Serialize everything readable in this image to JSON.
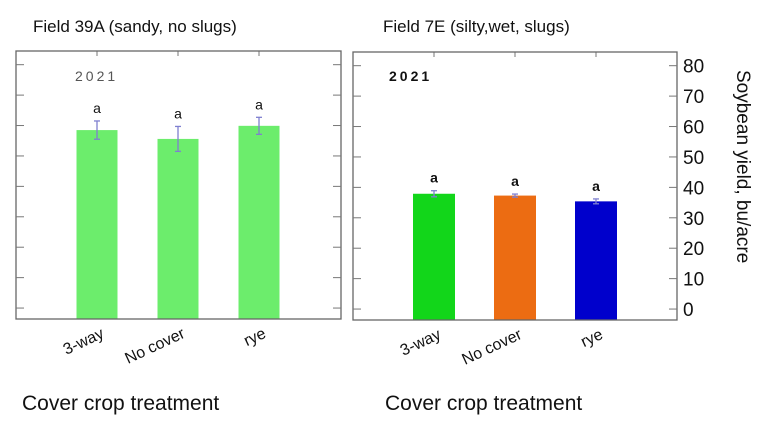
{
  "chart_data": [
    {
      "type": "bar",
      "title": "Field 39A (sandy, no slugs)",
      "annotation": "2021",
      "xlabel": "Cover crop treatment",
      "ylabel": "",
      "categories": [
        "3-way",
        "No cover",
        "rye"
      ],
      "values": [
        58.5,
        55.6,
        59.9
      ],
      "errors": [
        3.0,
        4.1,
        2.8
      ],
      "letters": [
        "a",
        "a",
        "a"
      ],
      "colors": [
        "#6ced6c",
        "#6ced6c",
        "#6ced6c"
      ],
      "ylim": [
        -3.6,
        84.5
      ],
      "yticks": [
        0,
        10,
        20,
        30,
        40,
        50,
        60,
        70,
        80
      ],
      "show_tick_labels": false
    },
    {
      "type": "bar",
      "title": "Field 7E (silty,wet, slugs)",
      "annotation": "2021",
      "xlabel": "Cover crop treatment",
      "ylabel": "Soybean yield, bu/acre",
      "categories": [
        "3-way",
        "No cover",
        "rye"
      ],
      "values": [
        37.9,
        37.3,
        35.4
      ],
      "errors": [
        1.0,
        0.5,
        0.8
      ],
      "letters": [
        "a",
        "a",
        "a"
      ],
      "colors": [
        "#12d61a",
        "#ec6c12",
        "#0000cc"
      ],
      "ylim": [
        -3.6,
        84.5
      ],
      "yticks": [
        0,
        10,
        20,
        30,
        40,
        50,
        60,
        70,
        80
      ],
      "show_tick_labels": true
    }
  ],
  "error_bar_color": "#7f80d0"
}
